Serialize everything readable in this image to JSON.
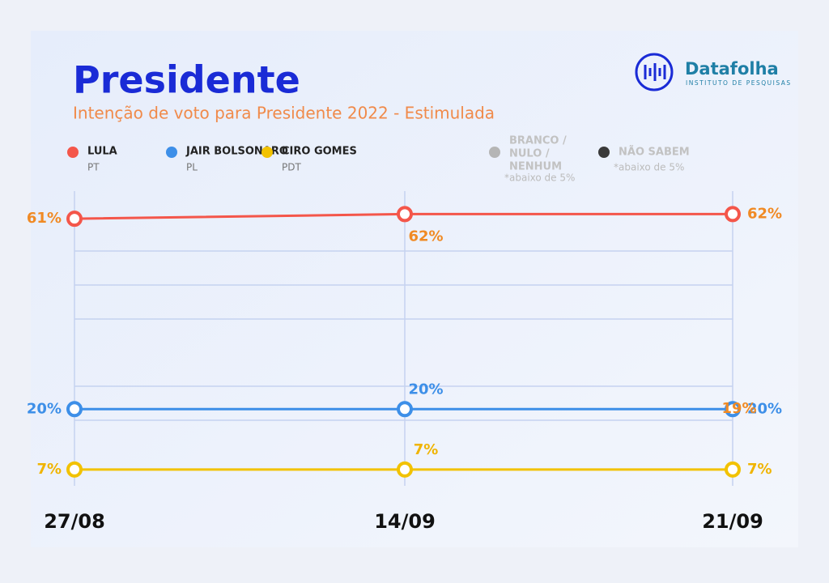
{
  "chart_data": {
    "type": "line",
    "title": "Presidente",
    "subtitle": "Intenção de voto para Presidente 2022 - Estimulada",
    "brand": {
      "name": "Datafolha",
      "tagline": "INSTITUTO DE PESQUISAS"
    },
    "categories": [
      "27/08",
      "14/09",
      "21/09"
    ],
    "ylim": [
      0,
      68
    ],
    "series": [
      {
        "name": "LULA",
        "party": "PT",
        "color": "#f4564a",
        "label_color": "#f08a24",
        "values": [
          61,
          62,
          62
        ],
        "value_labels": [
          "61%",
          "62%",
          "62%"
        ]
      },
      {
        "name": "JAIR BOLSONARO",
        "party": "PL",
        "color": "#3d8fe8",
        "label_color": "#3d8fe8",
        "values": [
          20,
          20,
          20
        ],
        "value_labels": [
          "20%",
          "20%",
          "20%"
        ]
      },
      {
        "name": "CIRO GOMES",
        "party": "PDT",
        "color": "#f2c200",
        "label_color": "#f0b400",
        "values": [
          7,
          7,
          7
        ],
        "value_labels": [
          "7%",
          "7%",
          "7%"
        ]
      }
    ],
    "legend_extra": [
      {
        "name_lines": [
          "BRANCO /",
          "NULO /",
          "NENHUM"
        ],
        "note": "*abaixo de 5%",
        "color": "#b5b5b5"
      },
      {
        "name_lines": [
          "NÃO SABEM"
        ],
        "note": "*abaixo de 5%",
        "color": "#3a3a3a"
      }
    ],
    "annotations": [
      {
        "text": "19%",
        "color": "#f08a24"
      }
    ]
  }
}
